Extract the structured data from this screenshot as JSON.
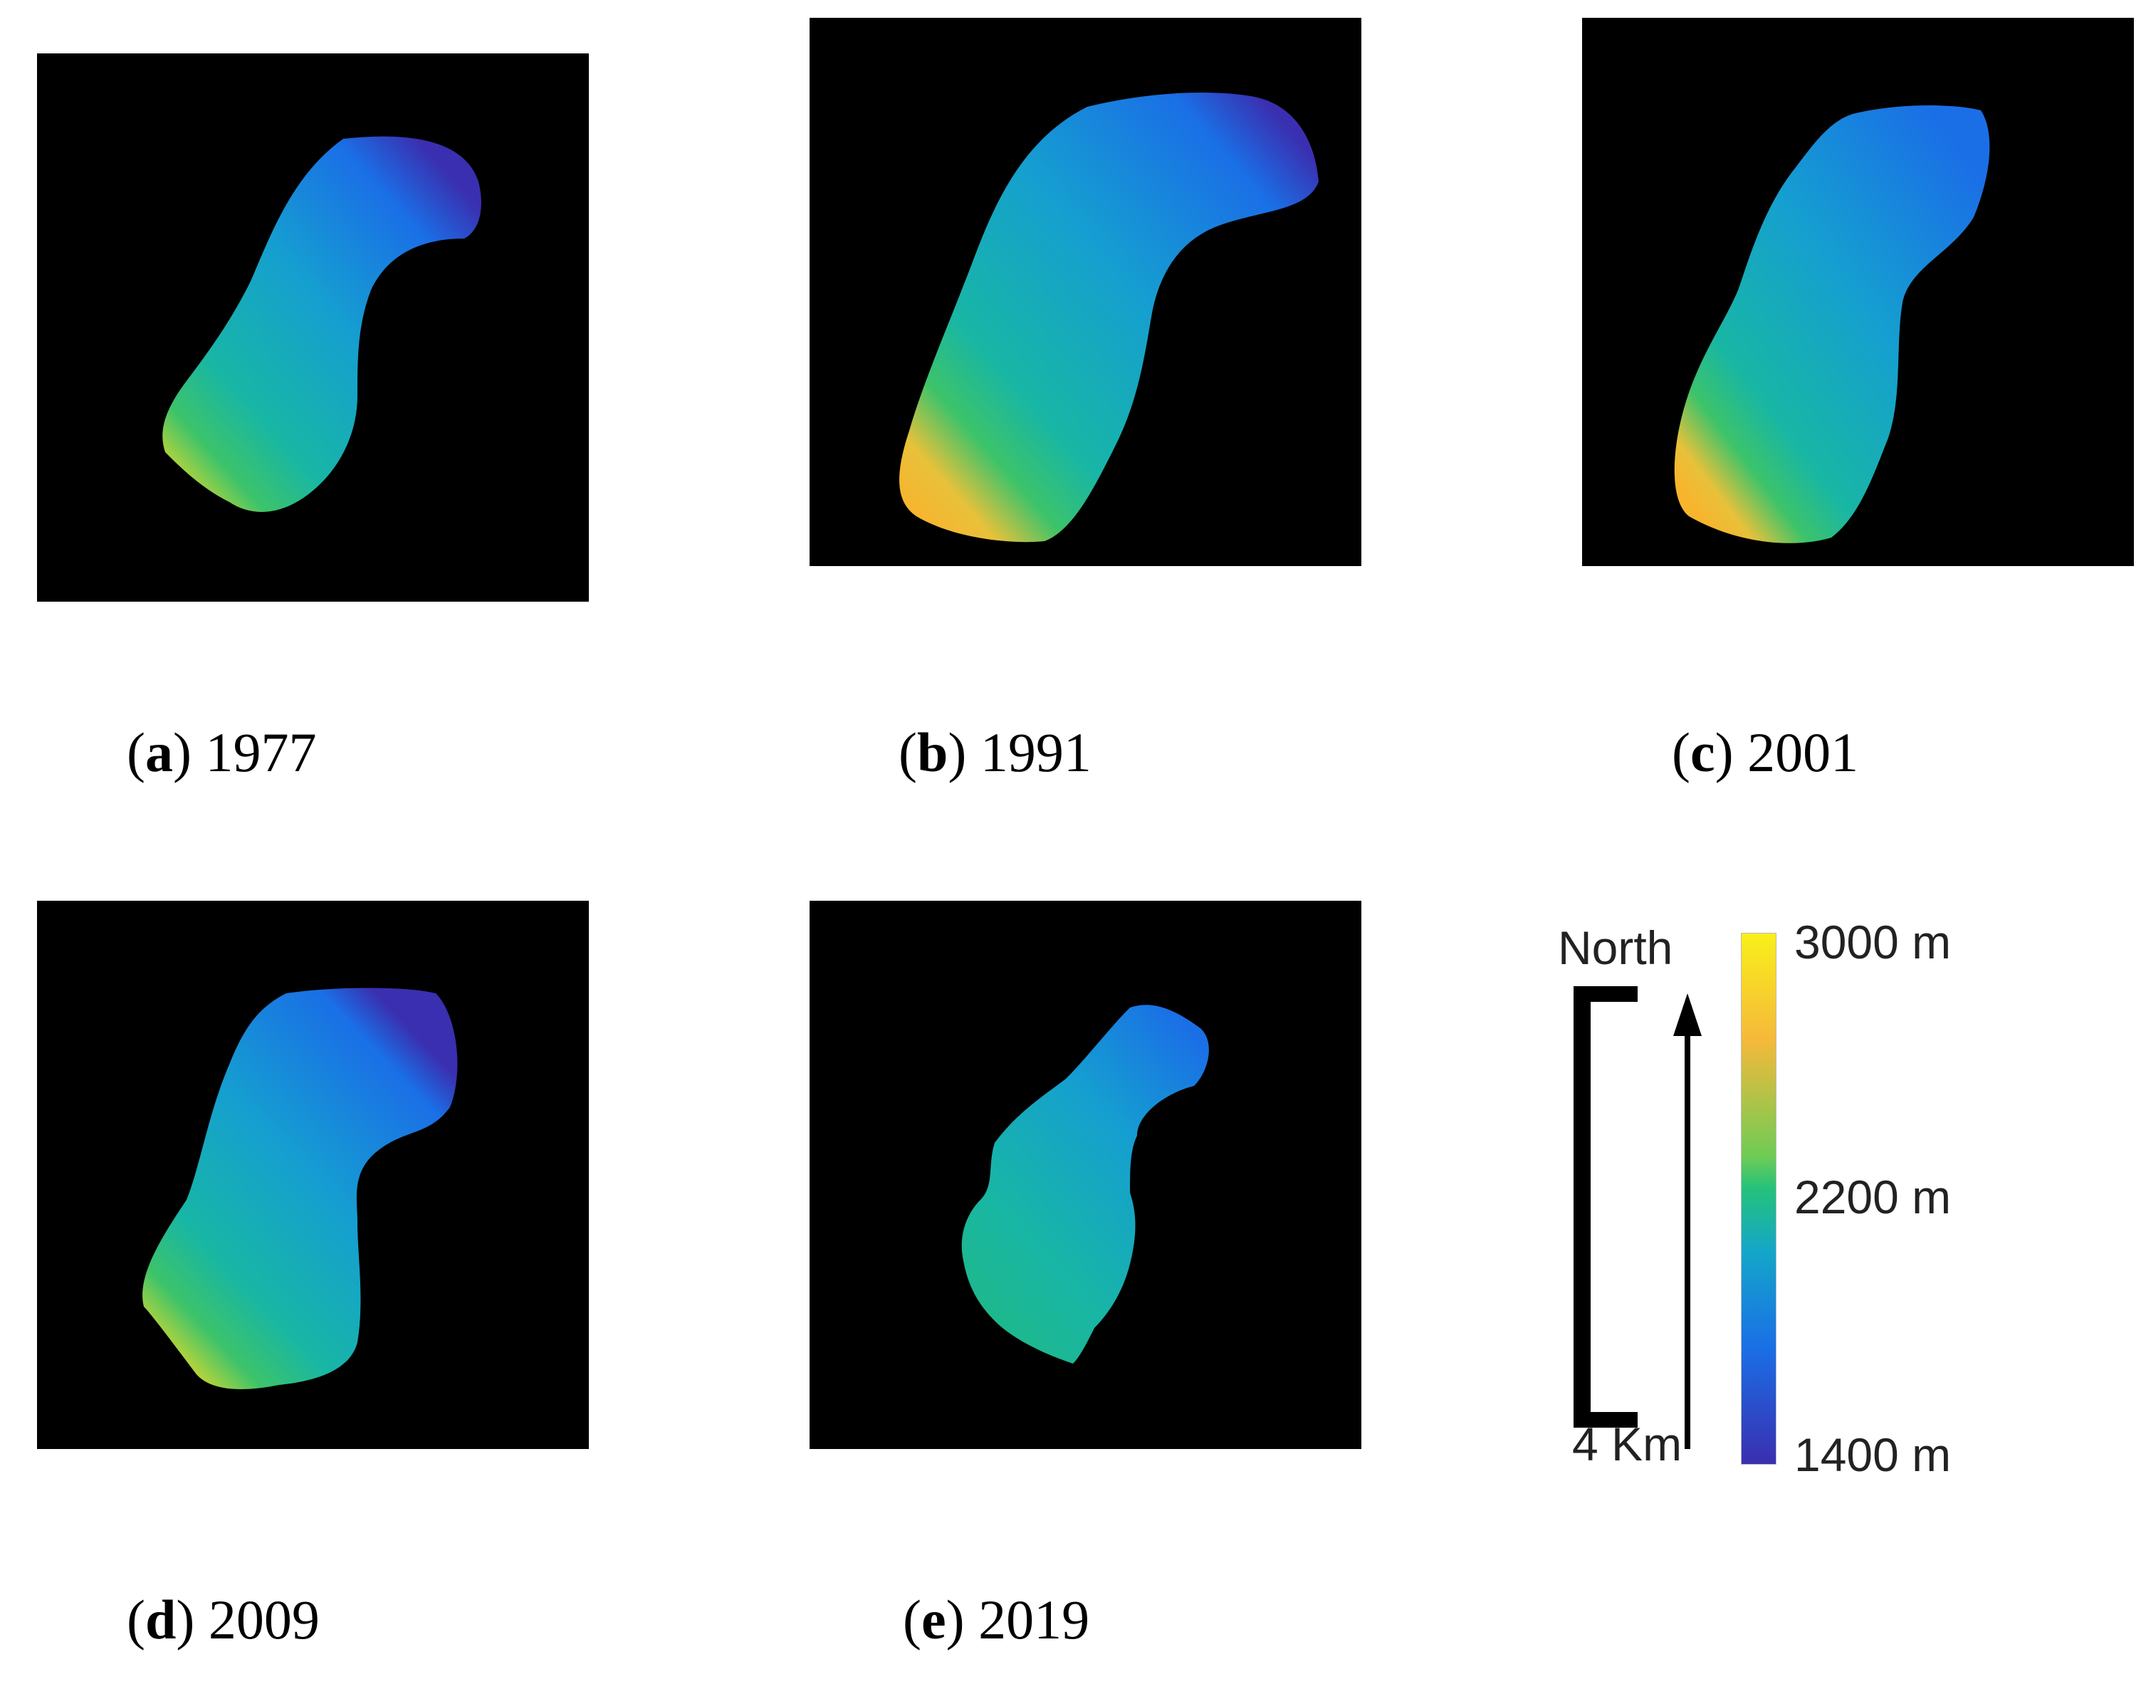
{
  "panels": [
    {
      "letter": "a",
      "year": "1977"
    },
    {
      "letter": "b",
      "year": "1991"
    },
    {
      "letter": "c",
      "year": "2001"
    },
    {
      "letter": "d",
      "year": "2009"
    },
    {
      "letter": "e",
      "year": "2019"
    }
  ],
  "legend": {
    "north_label": "North",
    "scale_label": "4 Km",
    "colorbar": {
      "max_label": "3000 m",
      "mid_label": "2200 m",
      "min_label": "1400 m",
      "colors": [
        "#f9ef1a",
        "#f5b93a",
        "#25c27a",
        "#14a6c9",
        "#1a6fe6",
        "#3a2fb0"
      ]
    }
  },
  "colors": {
    "background": "#000000",
    "glacier_low": "#3a2fb0",
    "glacier_mid": "#14a6c9",
    "glacier_green": "#25c27a",
    "glacier_high": "#f5b93a"
  }
}
